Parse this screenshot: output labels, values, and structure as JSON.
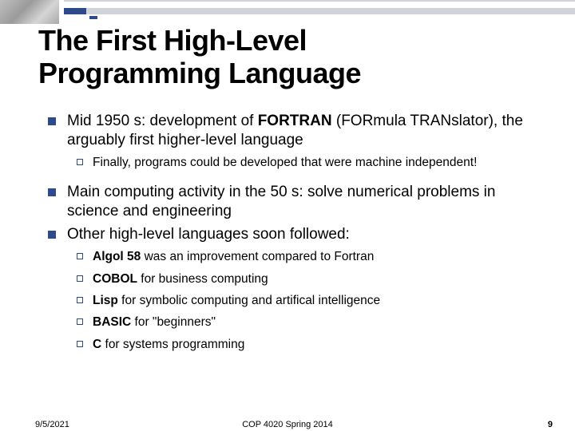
{
  "title_line1": "The First High-Level",
  "title_line2": "Programming Language",
  "bullets": {
    "b1_pre": "Mid 1950 s: development of ",
    "b1_bold": "FORTRAN",
    "b1_post": " (FORmula TRANslator), the arguably first higher-level language",
    "b1_sub": "Finally, programs could be developed that were machine independent!",
    "b2": "Main computing activity in the 50 s: solve numerical problems in science and engineering",
    "b3": "Other high-level languages soon followed:",
    "sub1_bold": "Algol 58",
    "sub1_post": " was an improvement compared to Fortran",
    "sub2_bold": "COBOL",
    "sub2_post": " for business computing",
    "sub3_bold": "Lisp",
    "sub3_post": " for symbolic computing and artifical intelligence",
    "sub4_bold": "BASIC",
    "sub4_post": " for \"beginners\"",
    "sub5_bold": "C",
    "sub5_post": " for systems programming"
  },
  "footer": {
    "date": "9/5/2021",
    "course": "COP 4020 Spring 2014",
    "page": "9"
  },
  "colors": {
    "accent_blue": "#2e4a8a",
    "header_gray": "#d0d4da",
    "text": "#000000",
    "background": "#ffffff"
  }
}
